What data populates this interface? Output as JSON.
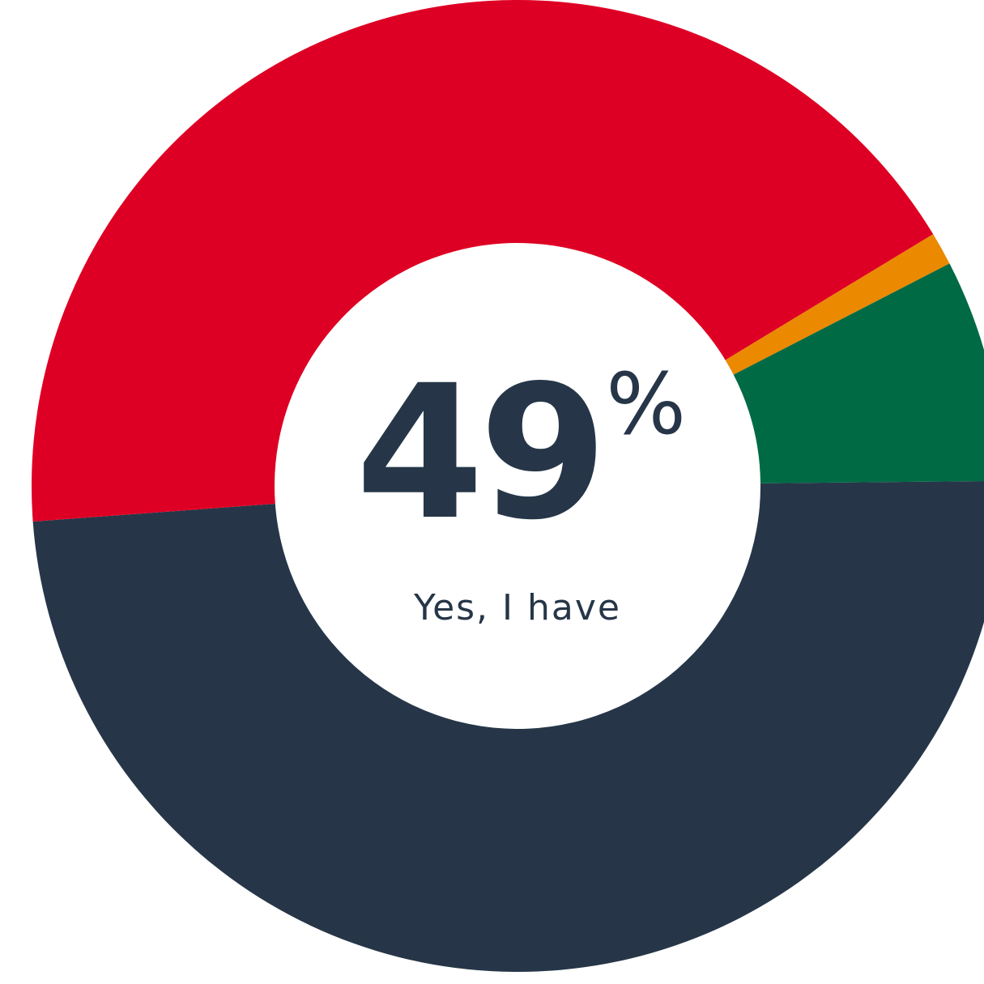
{
  "chart_data": {
    "type": "pie",
    "center_value": "49",
    "center_unit": "%",
    "center_label": "Yes, I have",
    "slices": [
      {
        "value": 49,
        "color": "#263648"
      },
      {
        "value": 42.5,
        "color": "#DE0024"
      },
      {
        "value": 1.1,
        "color": "#EB8900"
      },
      {
        "value": 7.4,
        "color": "#006A45"
      }
    ]
  }
}
